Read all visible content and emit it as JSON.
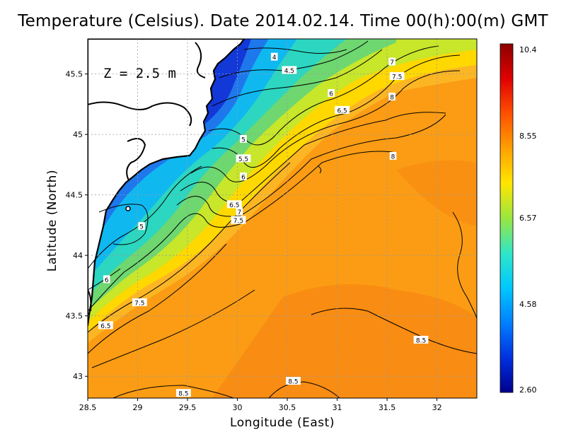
{
  "title": "Temperature (Celsius). Date 2014.02.14. Time 00(h):00(m)  GMT",
  "xlabel": "Longitude (East)",
  "ylabel": "Latitude (North)",
  "depth_label": "Z = 2.5 m",
  "x_ticks": [
    "28.5",
    "29",
    "29.5",
    "30",
    "30.5",
    "31",
    "31.5",
    "32"
  ],
  "y_ticks": [
    "45.5",
    "45",
    "44.5",
    "44",
    "43.5",
    "43"
  ],
  "colorbar": {
    "labels": [
      "10.4",
      "8.55",
      "6.57",
      "4.58",
      "2.60"
    ],
    "colors": [
      "#00008c",
      "#0030e0",
      "#0080ff",
      "#00c8ff",
      "#30e6c8",
      "#9ae640",
      "#ffe600",
      "#ffa000",
      "#ff5000",
      "#e00000",
      "#8c0000"
    ]
  },
  "contour_labels": [
    "4",
    "4.5",
    "5",
    "5.5",
    "6",
    "6.5",
    "7",
    "7.5",
    "8",
    "8.5"
  ],
  "chart_data": {
    "type": "heatmap",
    "title": "Temperature (Celsius). Date 2014.02.14. Time 00(h):00(m)  GMT",
    "xlabel": "Longitude (East)",
    "ylabel": "Latitude (North)",
    "xlim": [
      28.5,
      32.4
    ],
    "ylim": [
      42.82,
      45.79
    ],
    "colorbar_range": [
      2.6,
      10.4
    ],
    "grid": true,
    "contour_annotations": [
      {
        "label": "4",
        "lon": 30.37,
        "lat": 45.64
      },
      {
        "label": "4.5",
        "lon": 30.52,
        "lat": 45.53
      },
      {
        "label": "7",
        "lon": 31.55,
        "lat": 45.6
      },
      {
        "label": "7.5",
        "lon": 31.6,
        "lat": 45.48
      },
      {
        "label": "6",
        "lon": 30.94,
        "lat": 45.34
      },
      {
        "label": "6.5",
        "lon": 31.05,
        "lat": 45.2
      },
      {
        "label": "8",
        "lon": 31.55,
        "lat": 45.31
      },
      {
        "label": "5",
        "lon": 30.06,
        "lat": 44.96
      },
      {
        "label": "5.5",
        "lon": 30.06,
        "lat": 44.8
      },
      {
        "label": "8",
        "lon": 31.56,
        "lat": 44.82
      },
      {
        "label": "6",
        "lon": 30.06,
        "lat": 44.65
      },
      {
        "label": "6.5",
        "lon": 29.97,
        "lat": 44.42
      },
      {
        "label": "7",
        "lon": 30.02,
        "lat": 44.36
      },
      {
        "label": "7.5",
        "lon": 30.01,
        "lat": 44.29
      },
      {
        "label": "5",
        "lon": 29.04,
        "lat": 44.24
      },
      {
        "label": "6",
        "lon": 28.69,
        "lat": 43.8
      },
      {
        "label": "7.5",
        "lon": 29.02,
        "lat": 43.61
      },
      {
        "label": "6.5",
        "lon": 28.68,
        "lat": 43.42
      },
      {
        "label": "8.5",
        "lon": 31.84,
        "lat": 43.3
      },
      {
        "label": "8.5",
        "lon": 30.56,
        "lat": 42.96
      },
      {
        "label": "8.5",
        "lon": 29.46,
        "lat": 42.86
      }
    ]
  }
}
